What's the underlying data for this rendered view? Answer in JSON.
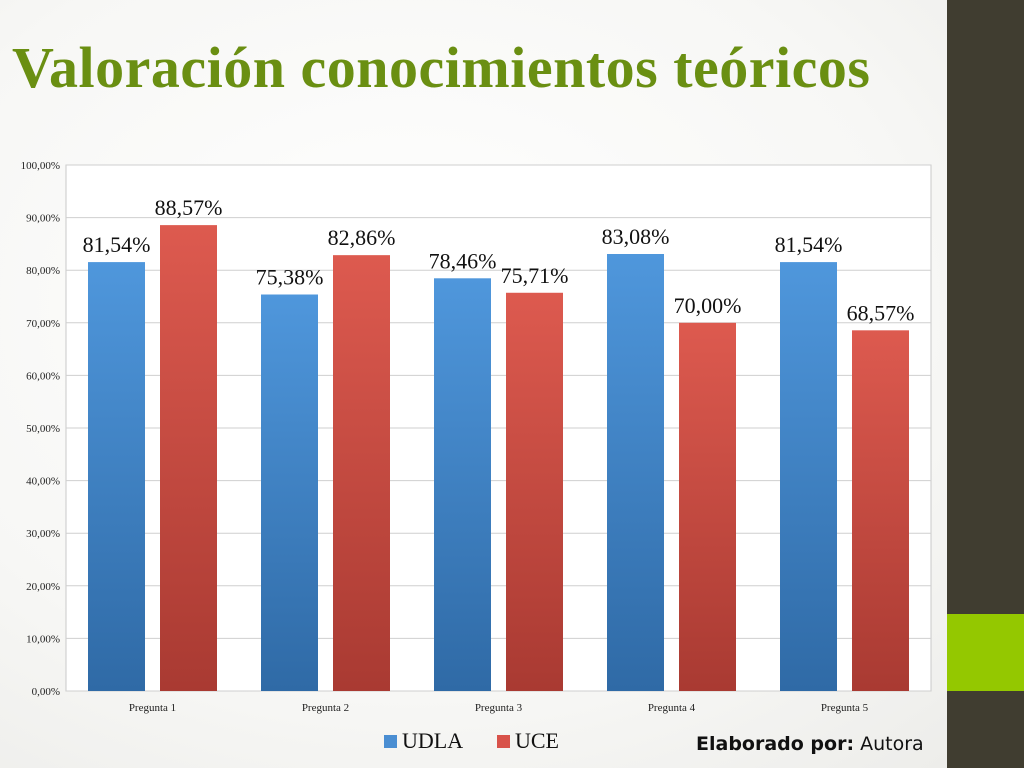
{
  "slide": {
    "title": "Valoración conocimientos teóricos",
    "credit_label": "Elaborado por:",
    "credit_value": "Autora"
  },
  "colors": {
    "title": "#6a8f12",
    "sidebar": "#403d30",
    "sidebar_accent": "#94c800",
    "udla": "#4a8ed2",
    "uce": "#d8524a"
  },
  "chart_data": {
    "type": "bar",
    "categories": [
      "Pregunta 1",
      "Pregunta 2",
      "Pregunta 3",
      "Pregunta 4",
      "Pregunta 5"
    ],
    "series": [
      {
        "name": "UDLA",
        "values": [
          81.54,
          75.38,
          78.46,
          83.08,
          81.54
        ],
        "labels": [
          "81,54%",
          "75,38%",
          "78,46%",
          "83,08%",
          "81,54%"
        ],
        "color": "#4a8ed2"
      },
      {
        "name": "UCE",
        "values": [
          88.57,
          82.86,
          75.71,
          70.0,
          68.57
        ],
        "labels": [
          "88,57%",
          "82,86%",
          "75,71%",
          "70,00%",
          "68,57%"
        ],
        "color": "#d8524a"
      }
    ],
    "ylim": [
      0,
      100
    ],
    "yticks": [
      0,
      10,
      20,
      30,
      40,
      50,
      60,
      70,
      80,
      90,
      100
    ],
    "ytick_labels": [
      "0,00%",
      "10,00%",
      "20,00%",
      "30,00%",
      "40,00%",
      "50,00%",
      "60,00%",
      "70,00%",
      "80,00%",
      "90,00%",
      "100,00%"
    ],
    "grid": true,
    "legend": "bottom-center"
  }
}
